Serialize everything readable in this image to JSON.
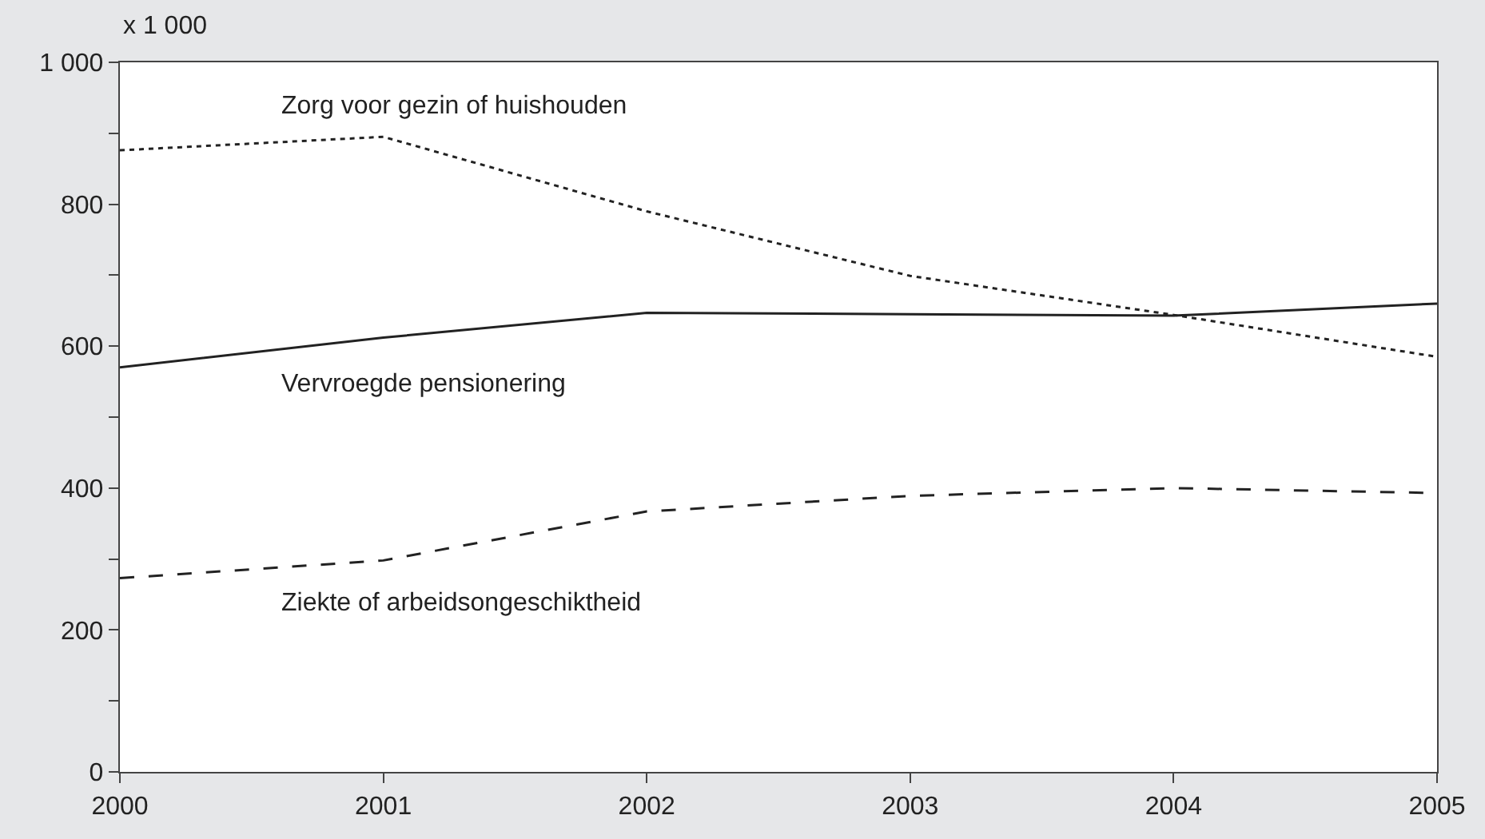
{
  "chart_data": {
    "type": "line",
    "ylabel": "x 1 000",
    "x": [
      2000,
      2001,
      2002,
      2003,
      2004,
      2005
    ],
    "series": [
      {
        "name": "Zorg voor gezin of huishouden",
        "color": "#222222",
        "line_style": "dotted",
        "values": [
          876,
          895,
          790,
          699,
          644,
          585
        ]
      },
      {
        "name": "Vervroegde pensionering",
        "color": "#222222",
        "line_style": "solid",
        "values": [
          570,
          612,
          647,
          645,
          643,
          660
        ]
      },
      {
        "name": "Ziekte of arbeidsongeschiktheid",
        "color": "#222222",
        "line_style": "dashed",
        "values": [
          273,
          298,
          367,
          389,
          400,
          393
        ]
      }
    ],
    "xlim": [
      2000,
      2005
    ],
    "xticks": [
      2000,
      2001,
      2002,
      2003,
      2004,
      2005
    ],
    "ylim": [
      0,
      1000
    ],
    "yticks": [
      0,
      {
        "value": 100,
        "label": null
      },
      200,
      {
        "value": 300,
        "label": null
      },
      400,
      {
        "value": 500,
        "label": null
      },
      600,
      {
        "value": 700,
        "label": null
      },
      800,
      {
        "value": 900,
        "label": null
      },
      {
        "value": 1000,
        "label": "1 000"
      }
    ],
    "legend": false,
    "marker": "none"
  }
}
